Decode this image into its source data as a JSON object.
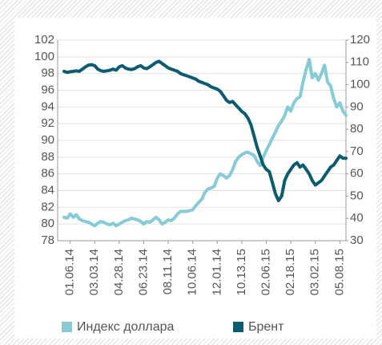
{
  "chart_data": {
    "type": "line",
    "categories": [
      null,
      null,
      "01.06.14",
      null,
      null,
      null,
      null,
      null,
      null,
      null,
      "03.03.14",
      null,
      null,
      null,
      null,
      null,
      null,
      null,
      "04.28.14",
      null,
      null,
      null,
      null,
      null,
      null,
      null,
      "06.23.14",
      null,
      null,
      null,
      null,
      null,
      null,
      null,
      "08.11.14",
      null,
      null,
      null,
      null,
      null,
      null,
      null,
      "10.06.14",
      null,
      null,
      null,
      null,
      null,
      null,
      null,
      "12.01.14",
      null,
      null,
      null,
      null,
      null,
      null,
      null,
      "10.13.15",
      null,
      null,
      null,
      null,
      null,
      null,
      null,
      "02.06.15",
      null,
      null,
      null,
      null,
      null,
      null,
      null,
      "02.18.15",
      null,
      null,
      null,
      null,
      null,
      null,
      null,
      "03.02.15",
      null,
      null,
      null,
      null,
      null,
      null,
      null,
      "05.08.15",
      null,
      null
    ],
    "series": [
      {
        "name": "Индекс доллара",
        "color": "#86cbd6",
        "values": [
          80.8,
          80.7,
          81.2,
          80.8,
          81.1,
          80.6,
          80.4,
          80.3,
          80.2,
          80.0,
          79.8,
          80.1,
          80.3,
          80.2,
          80.0,
          79.9,
          80.1,
          79.8,
          80.0,
          80.2,
          80.4,
          80.5,
          80.7,
          80.6,
          80.5,
          80.3,
          80.0,
          80.3,
          80.2,
          80.5,
          80.8,
          80.5,
          80.0,
          80.2,
          80.5,
          80.4,
          80.7,
          81.2,
          81.5,
          81.5,
          81.5,
          81.6,
          81.7,
          82.2,
          82.6,
          83.0,
          83.8,
          84.2,
          84.3,
          84.5,
          85.5,
          86.0,
          85.8,
          85.5,
          85.8,
          86.5,
          87.5,
          88.0,
          88.3,
          88.5,
          88.6,
          88.4,
          88.2,
          87.5,
          87.0,
          88.0,
          88.8,
          89.5,
          90.3,
          91.0,
          91.8,
          92.3,
          93.0,
          94.0,
          93.5,
          94.5,
          95.0,
          95.2,
          97.0,
          98.5,
          99.7,
          97.5,
          98.0,
          97.2,
          98.0,
          99.0,
          97.0,
          96.5,
          95.0,
          94.0,
          94.5,
          93.5,
          93.0
        ]
      },
      {
        "name": "Брент",
        "color": "#0b5c6e",
        "axis": "y2",
        "values": [
          106,
          105.5,
          105.8,
          106,
          106.2,
          106,
          107,
          108,
          108.8,
          109,
          108.5,
          107,
          106.3,
          106,
          106.2,
          106.5,
          107,
          106.5,
          108,
          108.5,
          107.5,
          107,
          106.8,
          107.2,
          108,
          108.5,
          107.5,
          107.2,
          108,
          109,
          110,
          110.5,
          109.5,
          108.5,
          107.5,
          107,
          106.5,
          106,
          105,
          104.5,
          104,
          103.5,
          103,
          102.5,
          101.5,
          101,
          100.5,
          100,
          99,
          98.5,
          98,
          97,
          95,
          93,
          92,
          92.5,
          91,
          89.5,
          88,
          87,
          85,
          82,
          77,
          72,
          68,
          64,
          62,
          61,
          56,
          51,
          48,
          50,
          57,
          60,
          62,
          64,
          65,
          63,
          64,
          62,
          60,
          57,
          55,
          56,
          57,
          59,
          61,
          63,
          64,
          66,
          68,
          67,
          67
        ]
      }
    ],
    "ylim": [
      78,
      102
    ],
    "yticks": [
      78,
      80,
      82,
      84,
      86,
      88,
      90,
      92,
      94,
      96,
      98,
      100,
      102
    ],
    "y2lim": [
      30,
      120
    ],
    "y2ticks": [
      30,
      40,
      50,
      60,
      70,
      80,
      90,
      100,
      110,
      120
    ],
    "grid": true,
    "legend": "bottom"
  }
}
